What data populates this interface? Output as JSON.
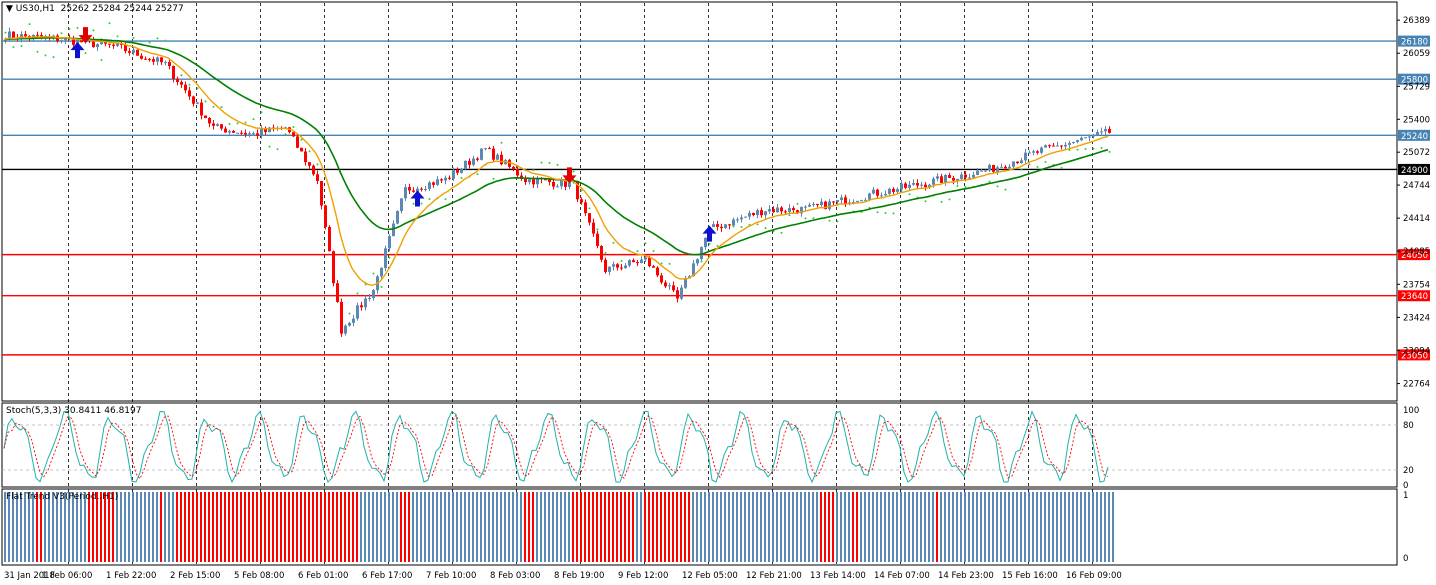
{
  "header": {
    "symbol": "US30,H1",
    "ohlc": "25262 25284 25244 25277"
  },
  "stoch": {
    "title": "Stoch(5,3,3) 30.8411 46.8197",
    "levels": [
      "100",
      "80",
      "20",
      "0"
    ]
  },
  "flat_trend": {
    "title": "Flat Trend V3(Period..H1)",
    "levels": [
      "1",
      "0"
    ]
  },
  "price_axis_ticks": [
    "26389",
    "26059",
    "25729",
    "25400",
    "25072",
    "24744",
    "24414",
    "24085",
    "23754",
    "23424",
    "23094",
    "22764"
  ],
  "time_axis_ticks": [
    "31 Jan 2018",
    "1 Feb 06:00",
    "1 Feb 22:00",
    "2 Feb 15:00",
    "5 Feb 08:00",
    "6 Feb 01:00",
    "6 Feb 17:00",
    "7 Feb 10:00",
    "8 Feb 03:00",
    "8 Feb 19:00",
    "9 Feb 12:00",
    "12 Feb 05:00",
    "12 Feb 21:00",
    "13 Feb 14:00",
    "14 Feb 07:00",
    "14 Feb 23:00",
    "15 Feb 16:00",
    "16 Feb 09:00"
  ],
  "colors": {
    "bull": "#5b88b5",
    "bear": "#ff0000",
    "ma_fast": "#f0a000",
    "ma_slow": "#008000",
    "sar": "#33cc33",
    "level_blue": "#4682b4",
    "level_red": "#ff0000",
    "level_black": "#000000",
    "stoch_main": "#20b2aa",
    "stoch_signal": "#ff0000"
  },
  "chart_data": [
    {
      "type": "candlestick",
      "title": "US30,H1",
      "ylim": [
        22600,
        26560
      ],
      "horizontal_levels": [
        {
          "value": 26180,
          "label": "26180",
          "color": "blue"
        },
        {
          "value": 25800,
          "label": "25800",
          "color": "blue"
        },
        {
          "value": 25240,
          "label": "25240",
          "color": "blue"
        },
        {
          "value": 24900,
          "label": "24900",
          "color": "black"
        },
        {
          "value": 24050,
          "label": "24050",
          "color": "red"
        },
        {
          "value": 23640,
          "label": "23640",
          "color": "red"
        },
        {
          "value": 23050,
          "label": "23050",
          "color": "red"
        }
      ],
      "price_path_keypoints": [
        {
          "bar": 0,
          "price": 26240
        },
        {
          "bar": 14,
          "price": 26200
        },
        {
          "bar": 28,
          "price": 26120
        },
        {
          "bar": 40,
          "price": 25950
        },
        {
          "bar": 52,
          "price": 25320
        },
        {
          "bar": 62,
          "price": 25250
        },
        {
          "bar": 70,
          "price": 25320
        },
        {
          "bar": 78,
          "price": 24800
        },
        {
          "bar": 84,
          "price": 23300
        },
        {
          "bar": 92,
          "price": 23700
        },
        {
          "bar": 100,
          "price": 24700
        },
        {
          "bar": 110,
          "price": 24800
        },
        {
          "bar": 120,
          "price": 25100
        },
        {
          "bar": 130,
          "price": 24800
        },
        {
          "bar": 142,
          "price": 24750
        },
        {
          "bar": 150,
          "price": 23900
        },
        {
          "bar": 160,
          "price": 24000
        },
        {
          "bar": 168,
          "price": 23600
        },
        {
          "bar": 176,
          "price": 24300
        },
        {
          "bar": 190,
          "price": 24500
        },
        {
          "bar": 200,
          "price": 24500
        },
        {
          "bar": 216,
          "price": 24650
        },
        {
          "bar": 232,
          "price": 24780
        },
        {
          "bar": 246,
          "price": 24900
        },
        {
          "bar": 260,
          "price": 25100
        },
        {
          "bar": 276,
          "price": 25270
        }
      ],
      "buy_arrows": [
        {
          "bar": 18,
          "price": 26080
        },
        {
          "bar": 103,
          "price": 24600
        },
        {
          "bar": 176,
          "price": 24250
        }
      ],
      "sell_arrows": [
        {
          "bar": 20,
          "price": 26250
        },
        {
          "bar": 141,
          "price": 24850
        }
      ]
    },
    {
      "type": "line",
      "title": "Stoch(5,3,3) 30.8411 46.8197",
      "ylim": [
        0,
        100
      ],
      "levels": [
        80,
        20
      ],
      "series": [
        {
          "name": "main",
          "last": 30.8411
        },
        {
          "name": "signal",
          "last": 46.8197
        }
      ]
    },
    {
      "type": "bar",
      "title": "Flat Trend V3(Period..H1)",
      "ylim": [
        0,
        1
      ],
      "segments": [
        {
          "from": 0,
          "to": 8,
          "state": "bull"
        },
        {
          "from": 8,
          "to": 10,
          "state": "bear"
        },
        {
          "from": 10,
          "to": 21,
          "state": "bull"
        },
        {
          "from": 21,
          "to": 28,
          "state": "bear"
        },
        {
          "from": 28,
          "to": 39,
          "state": "bull"
        },
        {
          "from": 39,
          "to": 40,
          "state": "bear"
        },
        {
          "from": 40,
          "to": 43,
          "state": "bull"
        },
        {
          "from": 43,
          "to": 89,
          "state": "bear"
        },
        {
          "from": 89,
          "to": 99,
          "state": "bull"
        },
        {
          "from": 99,
          "to": 102,
          "state": "bear"
        },
        {
          "from": 102,
          "to": 130,
          "state": "bull"
        },
        {
          "from": 130,
          "to": 133,
          "state": "bear"
        },
        {
          "from": 133,
          "to": 142,
          "state": "bull"
        },
        {
          "from": 142,
          "to": 158,
          "state": "bear"
        },
        {
          "from": 158,
          "to": 160,
          "state": "bull"
        },
        {
          "from": 160,
          "to": 172,
          "state": "bear"
        },
        {
          "from": 172,
          "to": 204,
          "state": "bull"
        },
        {
          "from": 204,
          "to": 208,
          "state": "bear"
        },
        {
          "from": 208,
          "to": 212,
          "state": "bull"
        },
        {
          "from": 212,
          "to": 214,
          "state": "bear"
        },
        {
          "from": 214,
          "to": 233,
          "state": "bull"
        },
        {
          "from": 233,
          "to": 234,
          "state": "bear"
        },
        {
          "from": 234,
          "to": 278,
          "state": "bull"
        }
      ]
    }
  ]
}
